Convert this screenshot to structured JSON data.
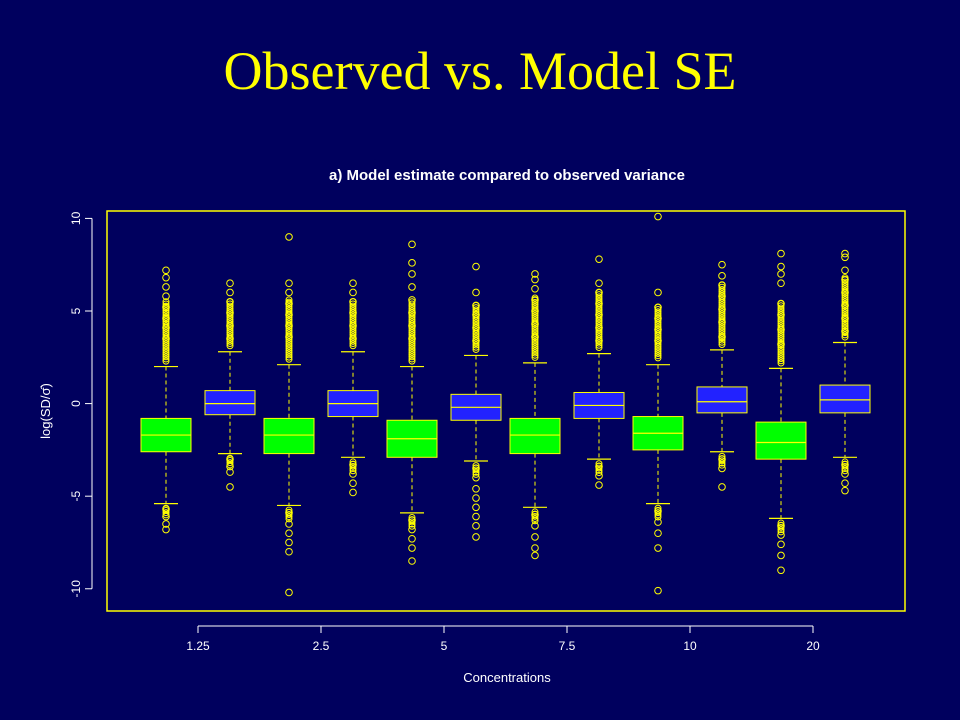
{
  "slide": {
    "title": "Observed vs. Model SE"
  },
  "chart_data": {
    "type": "box",
    "title": "a) Model estimate compared to observed variance",
    "xlabel": "Concentrations",
    "ylabel": "log(SD/σ̂)",
    "ylim": [
      -11.2,
      10.4
    ],
    "yticks": [
      -10,
      -5,
      0,
      5,
      10
    ],
    "categories": [
      "1.25",
      "2.5",
      "5",
      "7.5",
      "10",
      "20"
    ],
    "series": [
      {
        "name": "",
        "color": "#00ff00",
        "boxes": [
          {
            "whisker_low": -5.4,
            "q1": -2.6,
            "median": -1.7,
            "q3": -0.8,
            "whisker_high": 2.0,
            "outliers_high": [
              3.5,
              4.1,
              4.6,
              5.2,
              5.8,
              6.3,
              6.8,
              7.2
            ],
            "outliers_low": [
              -5.7,
              -6.1,
              -6.5,
              -6.8
            ]
          },
          {
            "whisker_low": -5.5,
            "q1": -2.7,
            "median": -1.7,
            "q3": -0.8,
            "whisker_high": 2.1,
            "outliers_high": [
              3.6,
              4.2,
              4.8,
              5.4,
              6.0,
              6.5,
              9.0
            ],
            "outliers_low": [
              -5.9,
              -6.5,
              -7.0,
              -7.5,
              -8.0,
              -10.2
            ]
          },
          {
            "whisker_low": -5.9,
            "q1": -2.9,
            "median": -1.9,
            "q3": -0.9,
            "whisker_high": 2.0,
            "outliers_high": [
              3.5,
              4.2,
              4.9,
              5.6,
              6.3,
              7.0,
              7.6,
              8.6
            ],
            "outliers_low": [
              -6.3,
              -6.8,
              -7.3,
              -7.8,
              -8.5
            ]
          },
          {
            "whisker_low": -5.6,
            "q1": -2.7,
            "median": -1.7,
            "q3": -0.8,
            "whisker_high": 2.2,
            "outliers_high": [
              3.6,
              4.3,
              5.0,
              5.6,
              6.2,
              6.7,
              7.0
            ],
            "outliers_low": [
              -6.0,
              -6.6,
              -7.2,
              -7.8,
              -8.2
            ]
          },
          {
            "whisker_low": -5.4,
            "q1": -2.5,
            "median": -1.6,
            "q3": -0.7,
            "whisker_high": 2.1,
            "outliers_high": [
              3.4,
              4.0,
              4.6,
              5.2,
              6.0,
              10.1
            ],
            "outliers_low": [
              -5.8,
              -6.4,
              -7.0,
              -7.8,
              -10.1
            ]
          },
          {
            "whisker_low": -6.2,
            "q1": -3.0,
            "median": -2.1,
            "q3": -1.0,
            "whisker_high": 1.9,
            "outliers_high": [
              3.2,
              4.0,
              4.8,
              5.4,
              6.5,
              7.0,
              7.4,
              8.1
            ],
            "outliers_low": [
              -6.6,
              -7.1,
              -7.6,
              -8.2,
              -9.0
            ]
          }
        ]
      },
      {
        "name": "",
        "color": "#2222ff",
        "boxes": [
          {
            "whisker_low": -2.7,
            "q1": -0.6,
            "median": 0.0,
            "q3": 0.7,
            "whisker_high": 2.8,
            "outliers_high": [
              3.5,
              4.2,
              4.9,
              5.5,
              6.0,
              6.5
            ],
            "outliers_low": [
              -3.0,
              -3.4,
              -3.7,
              -4.5
            ]
          },
          {
            "whisker_low": -2.9,
            "q1": -0.7,
            "median": 0.0,
            "q3": 0.7,
            "whisker_high": 2.8,
            "outliers_high": [
              3.5,
              4.2,
              4.9,
              5.5,
              6.0,
              6.5
            ],
            "outliers_low": [
              -3.3,
              -3.8,
              -4.3,
              -4.8
            ]
          },
          {
            "whisker_low": -3.1,
            "q1": -0.9,
            "median": -0.2,
            "q3": 0.5,
            "whisker_high": 2.6,
            "outliers_high": [
              3.4,
              4.1,
              4.8,
              5.3,
              6.0,
              7.4
            ],
            "outliers_low": [
              -3.5,
              -4.0,
              -4.6,
              -5.1,
              -5.6,
              -6.1,
              -6.6,
              -7.2
            ]
          },
          {
            "whisker_low": -3.0,
            "q1": -0.8,
            "median": -0.1,
            "q3": 0.6,
            "whisker_high": 2.7,
            "outliers_high": [
              3.4,
              4.1,
              4.8,
              5.4,
              6.0,
              6.5,
              7.8
            ],
            "outliers_low": [
              -3.4,
              -3.9,
              -4.4
            ]
          },
          {
            "whisker_low": -2.6,
            "q1": -0.5,
            "median": 0.1,
            "q3": 0.9,
            "whisker_high": 2.9,
            "outliers_high": [
              3.6,
              4.4,
              5.1,
              5.8,
              6.4,
              6.9,
              7.5
            ],
            "outliers_low": [
              -3.0,
              -3.5,
              -4.5
            ]
          },
          {
            "whisker_low": -2.9,
            "q1": -0.5,
            "median": 0.2,
            "q3": 1.0,
            "whisker_high": 3.3,
            "outliers_high": [
              3.9,
              4.6,
              5.3,
              6.0,
              6.7,
              7.2,
              7.9,
              8.1
            ],
            "outliers_low": [
              -3.3,
              -3.8,
              -4.3,
              -4.7
            ]
          }
        ]
      }
    ]
  }
}
